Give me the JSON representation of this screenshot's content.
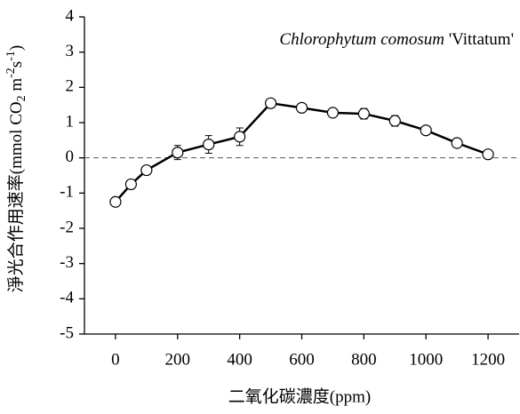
{
  "chart_data": {
    "type": "line",
    "annotation": [
      "Chlorophytum comosum",
      " 'Vittatum'"
    ],
    "xlabel": "二氧化碳濃度(ppm)",
    "ylabel": [
      "淨光合作用速率(mmol CO",
      "2",
      " m",
      "-2",
      "s",
      "-1",
      ")"
    ],
    "x": [
      0,
      50,
      100,
      200,
      300,
      400,
      500,
      600,
      700,
      800,
      900,
      1000,
      1100,
      1200
    ],
    "series": [
      {
        "color": "#000000",
        "values": [
          -1.25,
          -0.75,
          -0.35,
          0.15,
          0.38,
          0.6,
          1.55,
          1.42,
          1.28,
          1.25,
          1.05,
          0.78,
          0.42,
          0.1
        ],
        "errors": [
          0.03,
          0.03,
          0.03,
          0.2,
          0.25,
          0.25,
          0.05,
          0.12,
          0.1,
          0.15,
          0.15,
          0.05,
          0.05,
          0.05
        ]
      }
    ],
    "reference_line": 0,
    "xlim": [
      -100,
      1300
    ],
    "xticks": [
      0,
      200,
      400,
      600,
      800,
      1000,
      1200
    ],
    "ylim": [
      -5,
      4
    ],
    "yticks": [
      -5,
      -4,
      -3,
      -2,
      -1,
      0,
      1,
      2,
      3,
      4
    ]
  }
}
